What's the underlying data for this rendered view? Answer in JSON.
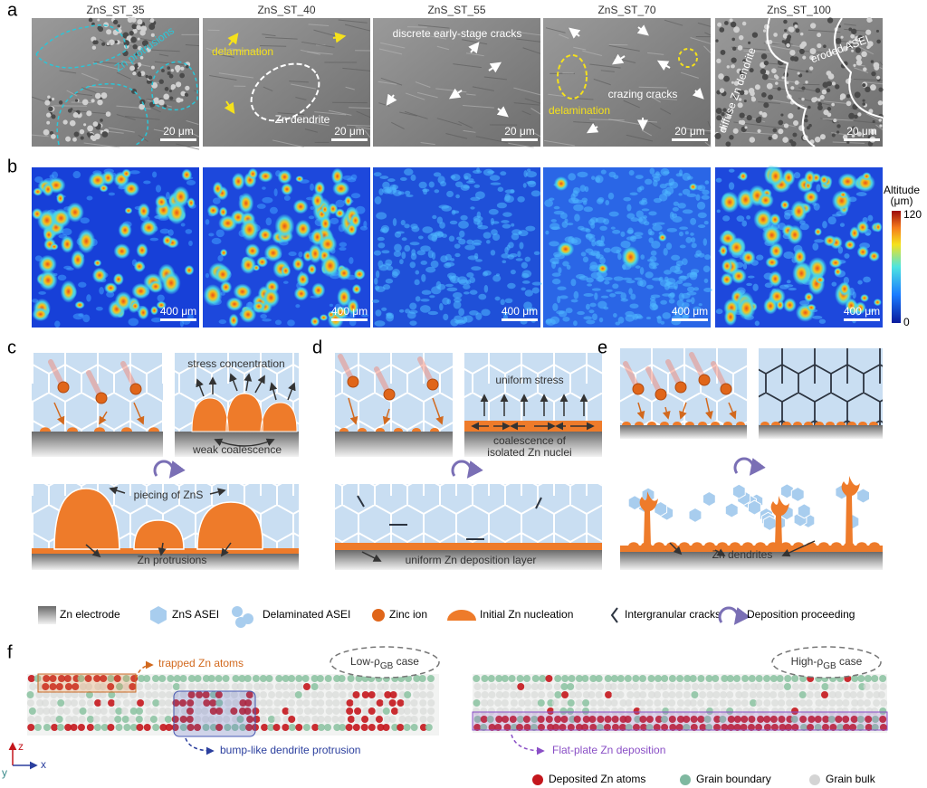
{
  "panel_a": {
    "label": "a",
    "images": [
      {
        "title": "ZnS_ST_35",
        "scale_bar": "20 μm",
        "annotations": [
          "Zn protrusions"
        ]
      },
      {
        "title": "ZnS_ST_40",
        "scale_bar": "20 μm",
        "annotations": [
          "delamination",
          "Zn dendrite"
        ]
      },
      {
        "title": "ZnS_ST_55",
        "scale_bar": "20 μm",
        "annotations": [
          "discrete early-stage cracks"
        ]
      },
      {
        "title": "ZnS_ST_70",
        "scale_bar": "20 μm",
        "annotations": [
          "crazing cracks",
          "delamination"
        ]
      },
      {
        "title": "ZnS_ST_100",
        "scale_bar": "20 μm",
        "annotations": [
          "diffuse Zn dendrite",
          "eroded ASEI"
        ]
      }
    ]
  },
  "panel_b": {
    "label": "b",
    "scale_bars": [
      "400 μm",
      "400 μm",
      "400 μm",
      "400 μm",
      "400 μm"
    ],
    "colorbar": {
      "title": [
        "Altitude",
        "(μm)"
      ],
      "max": 120,
      "min": 0
    }
  },
  "panel_c": {
    "label": "c",
    "annotations": [
      "stress concentration",
      "weak coalescence",
      "piecing of ZnS",
      "Zn protrusions"
    ]
  },
  "panel_d": {
    "label": "d",
    "annotations": [
      "uniform stress",
      "coalescence of",
      "isolated Zn nuclei",
      "uniform Zn deposition layer"
    ]
  },
  "panel_e": {
    "label": "e",
    "annotations": [
      "Zn dendrites"
    ]
  },
  "legend": [
    "Zn electrode",
    "ZnS ASEI",
    "Delaminated ASEI",
    "Zinc ion",
    "Initial Zn nucleation",
    "Intergranular cracks",
    "Deposition proceeding"
  ],
  "panel_f": {
    "label": "f",
    "trapped": "trapped Zn atoms",
    "bump": "bump-like dendrite protrusion",
    "flat": "Flat-plate Zn deposition",
    "low_case": {
      "prefix": "Low-ρ",
      "sub": "GB",
      "suffix": " case"
    },
    "high_case": {
      "prefix": "High-ρ",
      "sub": "GB",
      "suffix": " case"
    },
    "axes": [
      "z",
      "x",
      "y"
    ],
    "legend": [
      "Deposited Zn atoms",
      "Grain boundary",
      "Grain bulk"
    ]
  }
}
